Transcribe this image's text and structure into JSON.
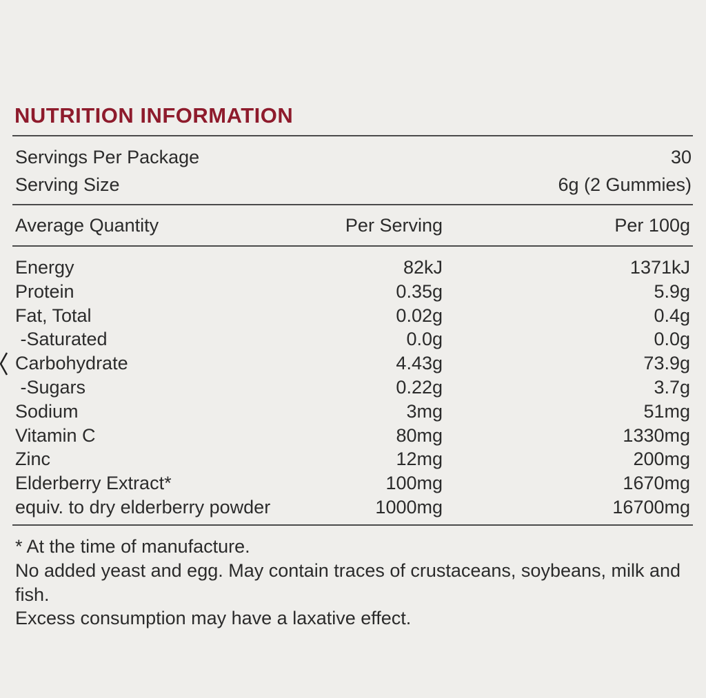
{
  "title": "NUTRITION INFORMATION",
  "servings": [
    [
      "Servings Per Package",
      "30"
    ],
    [
      "Serving Size",
      "6g (2 Gummies)"
    ]
  ],
  "table": {
    "header": [
      "Average Quantity",
      "Per Serving",
      "Per 100g"
    ],
    "rows": [
      [
        "Energy",
        "82kJ",
        "1371kJ"
      ],
      [
        "Protein",
        "0.35g",
        "5.9g"
      ],
      [
        "Fat, Total",
        "0.02g",
        "0.4g"
      ],
      [
        " -Saturated",
        "0.0g",
        "0.0g"
      ],
      [
        "Carbohydrate",
        "4.43g",
        "73.9g"
      ],
      [
        " -Sugars",
        "0.22g",
        "3.7g"
      ],
      [
        "Sodium",
        "3mg",
        "51mg"
      ],
      [
        "Vitamin C",
        "80mg",
        "1330mg"
      ],
      [
        "Zinc",
        "12mg",
        "200mg"
      ],
      [
        "Elderberry Extract*",
        "100mg",
        "1670mg"
      ],
      [
        "equiv. to dry elderberry powder",
        "1000mg",
        "16700mg"
      ]
    ]
  },
  "notes": [
    "* At the time of manufacture.",
    "No added yeast and egg. May contain traces of crustaceans, soybeans, milk and fish.",
    "Excess consumption may have a laxative effect."
  ]
}
